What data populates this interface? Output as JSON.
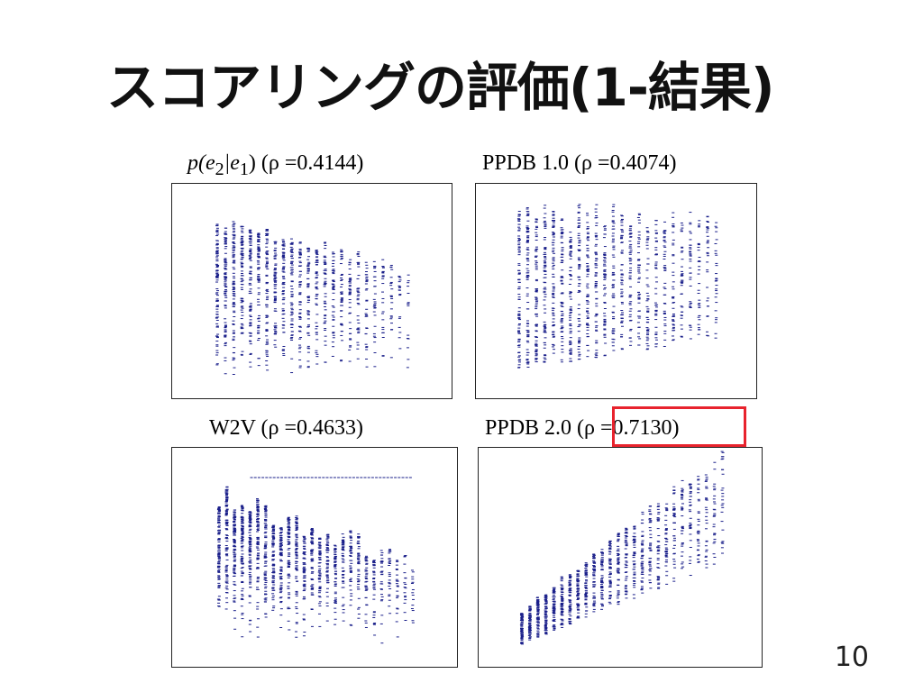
{
  "slide": {
    "title": "スコアリングの評価(1-結果)",
    "page_number": "10"
  },
  "panels": [
    {
      "id": "p-e2-e1",
      "label_math": "p(e",
      "label_math_sub1": "2",
      "label_math_mid": "|e",
      "label_math_sub2": "1",
      "label_math_end": ")",
      "label_rho": "(ρ =0.4144)"
    },
    {
      "id": "ppdb-1",
      "label": "PPDB 1.0 (ρ =0.4074)"
    },
    {
      "id": "w2v",
      "label": "W2V (ρ =0.4633)"
    },
    {
      "id": "ppdb-2",
      "label_prefix": "PPDB 2.0 (",
      "label_rho": "ρ =0.7130",
      "label_suffix": ")"
    }
  ],
  "colors": {
    "points": "#1a1f8a",
    "highlight": "#e8232d"
  }
}
